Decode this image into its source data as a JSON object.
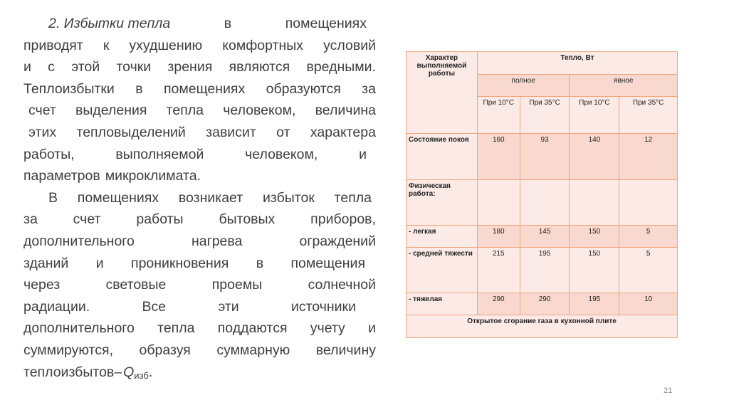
{
  "text": {
    "lines": [
      [
        "2. Избытки тепла",
        "в",
        "помещениях"
      ],
      [
        "приводят",
        "к",
        "ухудшению",
        "комфортных",
        "условий"
      ],
      [
        "и",
        "с",
        "этой",
        "точки",
        "зрения",
        "являются",
        "вредными."
      ],
      [
        "Теплоизбытки",
        "в",
        "помещениях",
        "образуются",
        "за"
      ],
      [
        "счет",
        "выделения",
        "тепла",
        "человеком,",
        "величина"
      ],
      [
        "этих",
        "тепловыделений",
        "зависит",
        "от",
        "характера"
      ],
      [
        "работы,",
        "выполняемой",
        "человеком,",
        "и"
      ],
      [
        "параметров",
        "микроклимата."
      ],
      [
        "В",
        "помещениях",
        "возникает",
        "избыток",
        "тепла"
      ],
      [
        "за",
        "счет",
        "работы",
        "бытовых",
        "приборов,"
      ],
      [
        "дополнительного",
        "нагрева",
        "ограждений"
      ],
      [
        "зданий",
        "и",
        "проникновения",
        "в",
        "помещения"
      ],
      [
        "через",
        "световые",
        "проемы",
        "солнечной"
      ],
      [
        "радиации.",
        "Все",
        "эти",
        "источники"
      ],
      [
        "дополнительного",
        "тепла",
        "поддаются",
        "учету",
        "и"
      ],
      [
        "суммируются,",
        "образуя",
        "суммарную",
        "величину"
      ],
      [
        "теплоизбытов–"
      ]
    ],
    "q_symbol": "Q",
    "q_sub": "изб",
    "q_end": "."
  },
  "table": {
    "col1_header": "Характер выполняемой работы",
    "heat_header": "Тепло, Вт",
    "full": "полное",
    "sensible": "явное",
    "temps": [
      "При 10°С",
      "При 35°С",
      "При 10°С",
      "При 35°С"
    ],
    "rows": [
      {
        "label": "Состояние покоя",
        "values": [
          "160",
          "93",
          "140",
          "12"
        ]
      },
      {
        "label": "Физическая работа:",
        "values": [
          "",
          "",
          "",
          ""
        ]
      },
      {
        "label": "- легкая",
        "values": [
          "180",
          "145",
          "150",
          "5"
        ]
      },
      {
        "label": "- средней тяжести",
        "values": [
          "215",
          "195",
          "150",
          "5"
        ]
      },
      {
        "label": "- тяжелая",
        "values": [
          "290",
          "290",
          "195",
          "10"
        ]
      }
    ],
    "footer": "Открытое сгорание газа в кухонной плите"
  },
  "page_number": "21",
  "colors": {
    "border": "#f1a47a",
    "cell_light": "#fbeae6",
    "cell_dark": "#f8d8cf",
    "text": "#3f3f3f"
  }
}
